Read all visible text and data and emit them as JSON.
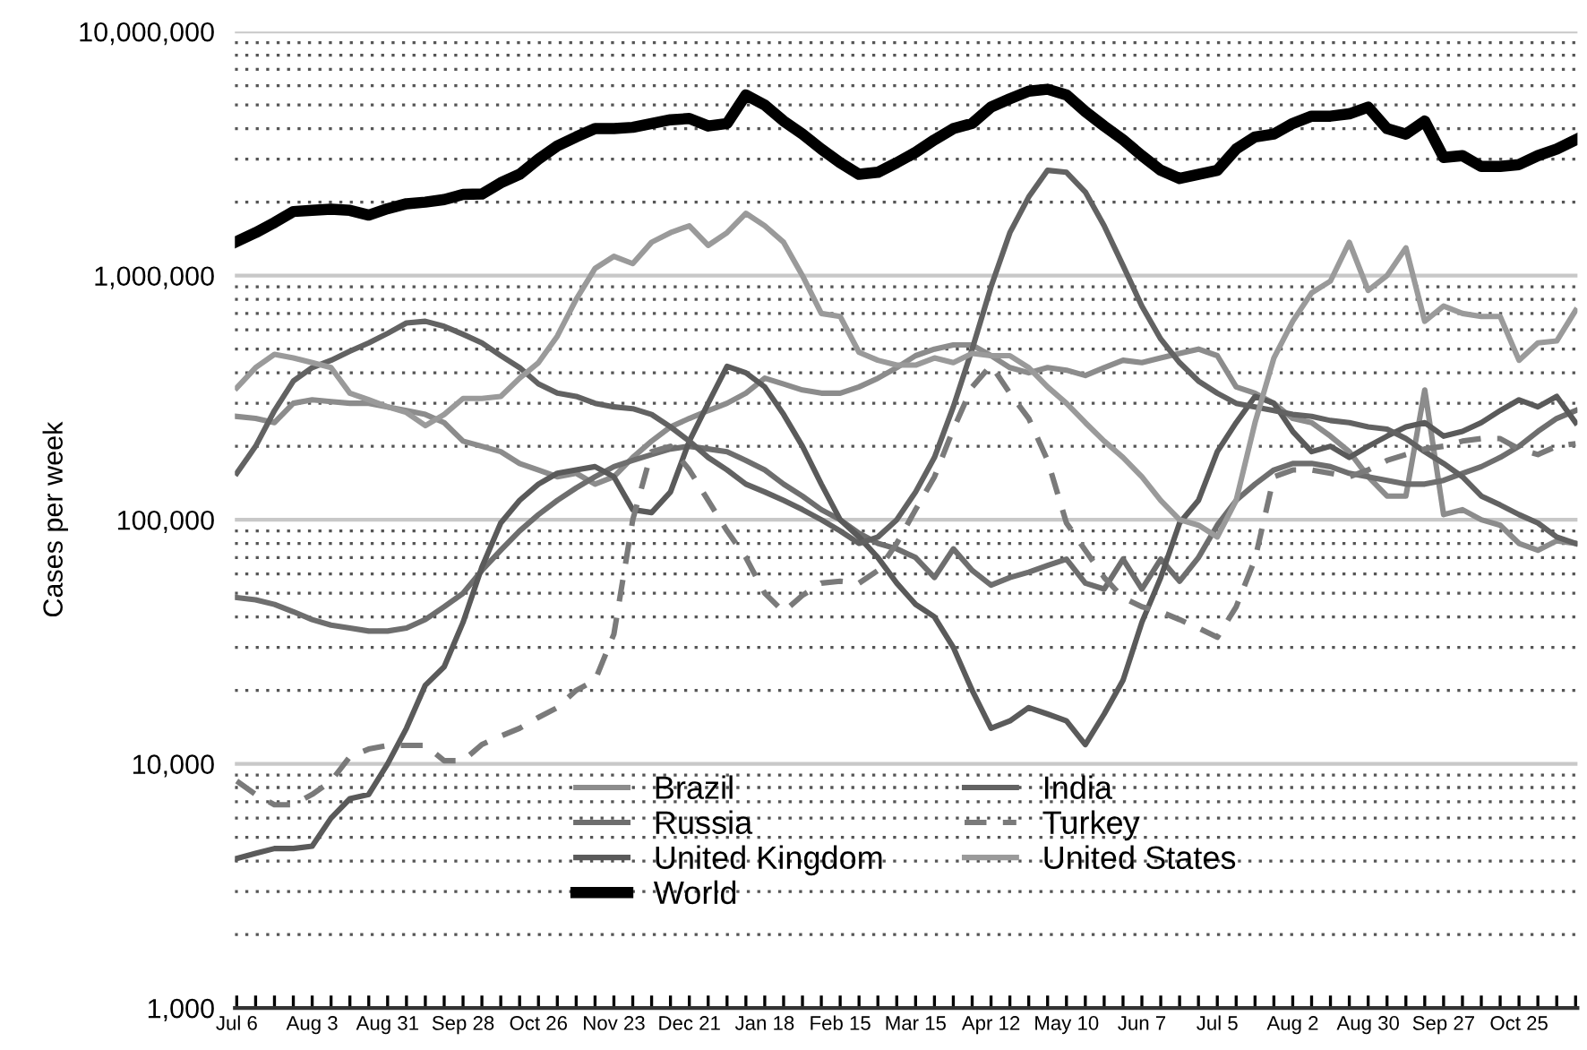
{
  "chart_data": {
    "type": "line",
    "ylabel": "Cases per week",
    "log": "y",
    "categories": [
      "Jul 6",
      null,
      null,
      null,
      "Aug 3",
      null,
      null,
      null,
      "Aug 31",
      null,
      null,
      null,
      "Sep 28",
      null,
      null,
      null,
      "Oct 26",
      null,
      null,
      null,
      "Nov 23",
      null,
      null,
      null,
      "Dec 21",
      null,
      null,
      null,
      "Jan 18",
      null,
      null,
      null,
      "Feb 15",
      null,
      null,
      null,
      "Mar 15",
      null,
      null,
      null,
      "Apr 12",
      null,
      null,
      null,
      "May 10",
      null,
      null,
      null,
      "Jun 7",
      null,
      null,
      null,
      "Jul 5",
      null,
      null,
      null,
      "Aug 2",
      null,
      null,
      null,
      "Aug 30",
      null,
      null,
      null,
      "Sep 27",
      null,
      null,
      null,
      "Oct 25",
      null,
      null,
      null
    ],
    "ylim": [
      1000,
      10000000
    ],
    "yticks": [
      {
        "value": 1000,
        "label": "1,000"
      },
      {
        "value": 10000,
        "label": "10,000"
      },
      {
        "value": 100000,
        "label": "100,000"
      },
      {
        "value": 1000000,
        "label": "1,000,000"
      },
      {
        "value": 10000000,
        "label": "10,000,000"
      }
    ],
    "grid": "y",
    "legend": "bottom",
    "series": [
      {
        "name": "Brazil",
        "color": "#8c8c8c",
        "line_style": "solid",
        "values": [
          265000,
          260000,
          250000,
          300000,
          310000,
          305000,
          300000,
          300000,
          290000,
          280000,
          270000,
          250000,
          210000,
          200000,
          190000,
          170000,
          160000,
          150000,
          155000,
          140000,
          150000,
          180000,
          210000,
          240000,
          260000,
          280000,
          300000,
          330000,
          380000,
          360000,
          340000,
          330000,
          330000,
          350000,
          380000,
          420000,
          470000,
          500000,
          520000,
          520000,
          470000,
          420000,
          400000,
          420000,
          410000,
          390000,
          420000,
          450000,
          440000,
          460000,
          480000,
          500000,
          470000,
          350000,
          330000,
          300000,
          260000,
          250000,
          220000,
          190000,
          150000,
          125000,
          125000,
          340000,
          105000,
          110000,
          100000,
          95000,
          80000,
          75000,
          82000,
          80000
        ]
      },
      {
        "name": "Russia",
        "color": "#6e6e6e",
        "line_style": "solid",
        "values": [
          48000,
          47000,
          45000,
          42000,
          39000,
          37000,
          36000,
          35000,
          35000,
          36000,
          39000,
          44000,
          50000,
          62000,
          75000,
          90000,
          105000,
          120000,
          135000,
          150000,
          165000,
          175000,
          185000,
          195000,
          200000,
          195000,
          190000,
          175000,
          160000,
          140000,
          125000,
          110000,
          100000,
          88000,
          80000,
          76000,
          70000,
          58000,
          76000,
          62000,
          54000,
          58000,
          61000,
          65000,
          69000,
          55000,
          52000,
          69000,
          52000,
          69000,
          56000,
          70000,
          95000,
          120000,
          140000,
          160000,
          170000,
          170000,
          165000,
          155000,
          150000,
          145000,
          140000,
          140000,
          145000,
          155000,
          165000,
          180000,
          200000,
          230000,
          260000,
          280000
        ]
      },
      {
        "name": "United Kingdom",
        "color": "#5a5a5a",
        "line_style": "solid",
        "values": [
          4100,
          4300,
          4500,
          4500,
          4600,
          6000,
          7200,
          7500,
          10000,
          14000,
          21000,
          25000,
          38000,
          64000,
          97000,
          120000,
          140000,
          155000,
          160000,
          165000,
          150000,
          110000,
          107000,
          130000,
          210000,
          300000,
          425000,
          400000,
          350000,
          270000,
          200000,
          140000,
          100000,
          85000,
          70000,
          55000,
          45000,
          40000,
          30000,
          20000,
          14000,
          15000,
          17000,
          16000,
          15000,
          12000,
          16000,
          22000,
          38000,
          58000,
          97000,
          120000,
          190000,
          250000,
          320000,
          300000,
          230000,
          190000,
          200000,
          180000,
          200000,
          220000,
          240000,
          250000,
          220000,
          230000,
          250000,
          280000,
          310000,
          290000,
          320000,
          250000
        ]
      },
      {
        "name": "World",
        "color": "#000000",
        "line_style": "solid",
        "values": [
          1380000,
          1500000,
          1650000,
          1830000,
          1850000,
          1870000,
          1850000,
          1770000,
          1880000,
          1970000,
          2000000,
          2050000,
          2150000,
          2160000,
          2400000,
          2600000,
          3000000,
          3400000,
          3700000,
          4000000,
          4000000,
          4050000,
          4200000,
          4350000,
          4400000,
          4100000,
          4200000,
          5500000,
          5000000,
          4300000,
          3800000,
          3300000,
          2900000,
          2600000,
          2650000,
          2900000,
          3200000,
          3600000,
          4000000,
          4200000,
          4900000,
          5300000,
          5700000,
          5800000,
          5500000,
          4700000,
          4100000,
          3600000,
          3100000,
          2700000,
          2500000,
          2600000,
          2700000,
          3300000,
          3700000,
          3800000,
          4200000,
          4500000,
          4500000,
          4600000,
          4900000,
          4000000,
          3800000,
          4300000,
          3050000,
          3100000,
          2800000,
          2800000,
          2850000,
          3100000,
          3300000,
          3600000
        ]
      },
      {
        "name": "India",
        "color": "#626262",
        "line_style": "solid",
        "values": [
          155000,
          200000,
          280000,
          370000,
          420000,
          450000,
          490000,
          530000,
          580000,
          640000,
          650000,
          620000,
          575000,
          530000,
          470000,
          420000,
          360000,
          330000,
          320000,
          300000,
          290000,
          285000,
          270000,
          240000,
          210000,
          180000,
          160000,
          140000,
          130000,
          120000,
          110000,
          100000,
          90000,
          80000,
          85000,
          100000,
          130000,
          180000,
          290000,
          500000,
          900000,
          1500000,
          2100000,
          2700000,
          2650000,
          2200000,
          1600000,
          1100000,
          750000,
          550000,
          440000,
          370000,
          330000,
          300000,
          290000,
          280000,
          270000,
          265000,
          255000,
          250000,
          240000,
          235000,
          215000,
          190000,
          170000,
          150000,
          125000,
          115000,
          105000,
          97000,
          85000,
          80000
        ]
      },
      {
        "name": "Turkey",
        "color": "#7a7a7a",
        "line_style": "dashed",
        "values": [
          8500,
          7500,
          6800,
          6800,
          7500,
          8500,
          10700,
          11500,
          11900,
          11900,
          11900,
          10300,
          10300,
          12000,
          13000,
          14000,
          15500,
          17000,
          20000,
          22000,
          34000,
          100000,
          190000,
          200000,
          160000,
          120000,
          90000,
          70000,
          50000,
          42000,
          49000,
          55000,
          56000,
          55000,
          62000,
          80000,
          110000,
          150000,
          235000,
          350000,
          430000,
          330000,
          260000,
          175000,
          97000,
          75000,
          58000,
          48000,
          44000,
          42000,
          39000,
          36000,
          33000,
          44000,
          69000,
          150000,
          160000,
          160000,
          155000,
          150000,
          160000,
          175000,
          185000,
          195000,
          200000,
          210000,
          215000,
          215000,
          195000,
          185000,
          200000,
          205000
        ]
      },
      {
        "name": "United States",
        "color": "#9a9a9a",
        "line_style": "solid",
        "values": [
          347000,
          420000,
          476000,
          460000,
          440000,
          420000,
          330000,
          310000,
          290000,
          275000,
          243000,
          270000,
          314000,
          314000,
          320000,
          380000,
          440000,
          565000,
          800000,
          1070000,
          1200000,
          1120000,
          1370000,
          1500000,
          1600000,
          1330000,
          1500000,
          1800000,
          1600000,
          1370000,
          1000000,
          700000,
          680000,
          485000,
          450000,
          430000,
          430000,
          460000,
          440000,
          480000,
          470000,
          470000,
          420000,
          350000,
          300000,
          250000,
          210000,
          180000,
          150000,
          120000,
          100000,
          95000,
          85000,
          120000,
          250000,
          460000,
          650000,
          850000,
          950000,
          1370000,
          870000,
          1000000,
          1300000,
          650000,
          750000,
          700000,
          680000,
          680000,
          450000,
          530000,
          540000,
          720000
        ]
      }
    ]
  }
}
